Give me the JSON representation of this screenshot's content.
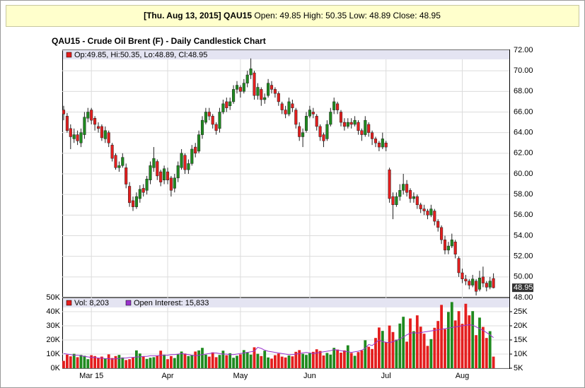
{
  "header": {
    "date": "[Thu. Aug 13, 2015]",
    "symbol": "QAU15",
    "quote": "Open: 49.85 High: 50.35 Low: 48.89 Close: 48.95"
  },
  "chart_data": [
    {
      "type": "candlestick",
      "title": "QAU15 - Crude Oil Brent (F) - Daily Candlestick Chart",
      "legend": "Op:49.85, Hi:50.35, Lo:48.89, Cl:48.95",
      "categories": [
        null,
        null,
        null,
        null,
        null,
        null,
        null,
        null,
        "Mar 15",
        null,
        null,
        null,
        null,
        null,
        null,
        null,
        null,
        null,
        null,
        null,
        null,
        null,
        null,
        null,
        null,
        null,
        null,
        null,
        null,
        null,
        "Apr",
        null,
        null,
        null,
        null,
        null,
        null,
        null,
        null,
        null,
        null,
        null,
        null,
        null,
        null,
        null,
        null,
        null,
        null,
        null,
        null,
        "May",
        null,
        null,
        null,
        null,
        null,
        null,
        null,
        null,
        null,
        null,
        null,
        null,
        null,
        null,
        null,
        null,
        null,
        null,
        null,
        "Jun",
        null,
        null,
        null,
        null,
        null,
        null,
        null,
        null,
        null,
        null,
        null,
        null,
        null,
        null,
        null,
        null,
        null,
        null,
        null,
        null,
        null,
        "Jul",
        null,
        null,
        null,
        null,
        null,
        null,
        null,
        null,
        null,
        null,
        null,
        null,
        null,
        null,
        null,
        null,
        null,
        null,
        null,
        null,
        null,
        "Aug",
        null,
        null,
        null,
        null,
        null,
        null,
        null,
        null,
        null
      ],
      "open": [
        66.2,
        65.6,
        64.4,
        63.4,
        63.8,
        63.0,
        63.8,
        65.4,
        66.2,
        65.4,
        64.6,
        64.6,
        63.4,
        64.0,
        62.8,
        61.8,
        60.6,
        60.8,
        60.6,
        58.8,
        57.4,
        56.8,
        57.6,
        58.6,
        58.4,
        59.4,
        60.6,
        61.2,
        60.2,
        59.4,
        60.2,
        59.6,
        58.6,
        59.6,
        60.6,
        61.8,
        60.4,
        61.0,
        62.6,
        62.2,
        63.8,
        65.0,
        66.0,
        65.6,
        64.8,
        64.4,
        66.0,
        67.0,
        66.6,
        67.0,
        68.2,
        68.4,
        68.0,
        68.8,
        69.6,
        69.8,
        67.6,
        68.2,
        67.2,
        67.6,
        68.6,
        68.2,
        67.8,
        66.8,
        66.2,
        65.8,
        66.8,
        66.2,
        64.6,
        63.6,
        64.2,
        65.6,
        66.0,
        65.6,
        64.6,
        63.8,
        63.4,
        64.8,
        66.2,
        66.8,
        66.0,
        65.0,
        64.6,
        65.0,
        64.8,
        65.0,
        64.2,
        63.8,
        64.8,
        64.0,
        63.4,
        63.0,
        62.6,
        63.0,
        60.4,
        57.8,
        57.0,
        57.8,
        58.4,
        59.0,
        58.4,
        57.6,
        57.8,
        57.0,
        56.6,
        56.4,
        56.0,
        56.4,
        55.4,
        54.8,
        53.6,
        52.6,
        53.0,
        53.4,
        51.8,
        50.4,
        49.8,
        49.6,
        49.2,
        49.6,
        48.8,
        50.0,
        49.4,
        49.0,
        49.85
      ],
      "high": [
        66.6,
        65.9,
        64.8,
        64.4,
        64.2,
        64.4,
        66.0,
        66.4,
        66.4,
        65.6,
        65.0,
        64.8,
        64.6,
        64.2,
        63.0,
        62.0,
        61.2,
        62.0,
        61.0,
        59.2,
        57.8,
        58.2,
        58.9,
        59.0,
        59.8,
        61.2,
        62.6,
        61.4,
        60.4,
        60.8,
        60.6,
        59.8,
        60.0,
        61.2,
        62.4,
        62.0,
        61.4,
        62.8,
        63.0,
        64.2,
        65.6,
        66.4,
        66.4,
        65.8,
        65.0,
        66.4,
        67.2,
        67.4,
        67.4,
        68.6,
        69.0,
        68.6,
        69.2,
        70.0,
        71.2,
        70.0,
        68.8,
        68.4,
        67.8,
        69.2,
        69.0,
        68.4,
        68.0,
        67.0,
        66.6,
        67.4,
        67.2,
        66.4,
        65.0,
        64.4,
        66.0,
        66.6,
        66.4,
        65.8,
        64.8,
        64.0,
        65.2,
        66.4,
        67.4,
        67.0,
        66.2,
        65.4,
        65.4,
        65.4,
        65.6,
        65.2,
        64.4,
        65.6,
        65.0,
        64.2,
        63.6,
        63.2,
        64.0,
        63.2,
        60.6,
        58.2,
        58.2,
        59.0,
        60.0,
        59.4,
        58.6,
        58.2,
        58.0,
        57.2,
        57.0,
        56.6,
        57.0,
        56.6,
        55.6,
        55.0,
        54.0,
        53.4,
        54.2,
        53.6,
        52.0,
        50.8,
        50.2,
        49.8,
        50.2,
        49.8,
        50.6,
        51.0,
        49.6,
        50.0,
        50.35
      ],
      "low": [
        65.2,
        64.0,
        62.4,
        63.0,
        62.8,
        62.6,
        63.4,
        65.0,
        64.8,
        64.2,
        64.0,
        63.2,
        63.0,
        62.6,
        61.2,
        60.4,
        60.2,
        60.6,
        58.6,
        56.8,
        56.4,
        56.6,
        57.2,
        57.8,
        58.0,
        59.0,
        60.2,
        59.4,
        58.8,
        59.0,
        59.0,
        57.8,
        58.2,
        59.2,
        60.4,
        60.0,
        60.0,
        60.8,
        61.6,
        62.0,
        63.4,
        64.8,
        65.2,
        64.4,
        63.8,
        64.0,
        65.8,
        66.0,
        66.2,
        66.8,
        67.8,
        67.4,
        67.8,
        68.4,
        69.2,
        67.2,
        67.2,
        66.6,
        66.8,
        67.4,
        67.8,
        67.4,
        66.6,
        65.8,
        65.4,
        65.6,
        66.0,
        64.4,
        63.2,
        62.6,
        64.0,
        65.4,
        65.4,
        64.2,
        63.2,
        62.6,
        63.2,
        64.6,
        65.8,
        65.8,
        64.6,
        64.2,
        64.4,
        64.4,
        64.6,
        63.8,
        63.2,
        63.6,
        63.6,
        62.8,
        62.6,
        62.2,
        62.4,
        62.2,
        57.2,
        55.6,
        56.8,
        57.4,
        58.0,
        57.8,
        57.2,
        57.2,
        56.6,
        56.2,
        56.0,
        55.6,
        55.8,
        55.0,
        54.4,
        53.2,
        52.2,
        52.2,
        52.8,
        51.8,
        50.0,
        49.4,
        49.2,
        48.8,
        49.0,
        48.2,
        48.6,
        49.0,
        48.6,
        48.8,
        48.89
      ],
      "close": [
        65.8,
        64.2,
        63.6,
        63.8,
        63.2,
        64.0,
        65.5,
        66.0,
        65.2,
        64.8,
        64.4,
        63.5,
        64.2,
        63.0,
        61.5,
        60.6,
        60.8,
        61.6,
        59.0,
        57.2,
        56.8,
        57.8,
        58.5,
        58.2,
        59.5,
        60.8,
        61.5,
        59.8,
        59.2,
        60.5,
        59.4,
        58.4,
        59.6,
        60.8,
        62.0,
        60.4,
        61.0,
        62.4,
        62.0,
        63.8,
        65.2,
        66.0,
        65.6,
        64.8,
        64.2,
        66.0,
        66.8,
        66.4,
        67.0,
        68.2,
        68.6,
        68.0,
        68.8,
        69.6,
        70.2,
        67.6,
        68.4,
        67.2,
        67.4,
        68.8,
        68.2,
        67.8,
        67.0,
        66.2,
        65.8,
        67.0,
        66.4,
        64.8,
        63.6,
        64.0,
        65.6,
        66.2,
        65.8,
        64.6,
        63.6,
        63.2,
        64.8,
        66.0,
        67.0,
        66.2,
        65.0,
        64.6,
        65.0,
        64.8,
        65.2,
        64.2,
        63.8,
        65.2,
        64.0,
        63.4,
        63.0,
        62.6,
        63.4,
        62.6,
        57.6,
        57.0,
        57.8,
        58.4,
        59.0,
        58.2,
        57.6,
        57.8,
        57.0,
        56.6,
        56.4,
        56.0,
        56.6,
        55.4,
        54.8,
        53.6,
        52.6,
        53.0,
        53.6,
        52.2,
        50.4,
        49.8,
        49.6,
        49.2,
        49.8,
        48.6,
        49.9,
        49.4,
        49.0,
        49.6,
        48.95
      ],
      "last_price": 48.95,
      "up_color": "#1f8a1f",
      "down_color": "#e41e1e",
      "ylim": [
        48,
        72
      ],
      "yticks": [
        {
          "value": 48,
          "label": "48.00"
        },
        {
          "value": 50,
          "label": "50.00"
        },
        {
          "value": 52,
          "label": "52.00"
        },
        {
          "value": 54,
          "label": "54.00"
        },
        {
          "value": 56,
          "label": "56.00"
        },
        {
          "value": 58,
          "label": "58.00"
        },
        {
          "value": 60,
          "label": "60.00"
        },
        {
          "value": 62,
          "label": "62.00"
        },
        {
          "value": 64,
          "label": "64.00"
        },
        {
          "value": 66,
          "label": "66.00"
        },
        {
          "value": 68,
          "label": "68.00"
        },
        {
          "value": 70,
          "label": "70.00"
        },
        {
          "value": 72,
          "label": "72.00"
        }
      ],
      "grid": true
    },
    {
      "type": "bar",
      "series": [
        {
          "name": "Vol: 8,203",
          "color": "#e41e1e",
          "values": [
            5200,
            9600,
            8400,
            10200,
            7800,
            9400,
            8800,
            6400,
            9200,
            8600,
            7400,
            8200,
            6800,
            9800,
            7200,
            8600,
            9400,
            7600,
            5800,
            6400,
            7800,
            12600,
            10400,
            8200,
            6600,
            7400,
            7800,
            8800,
            12400,
            9600,
            6400,
            8600,
            7200,
            9800,
            11800,
            10400,
            8600,
            9400,
            11800,
            12600,
            14400,
            9600,
            8200,
            11200,
            7800,
            9400,
            12400,
            9200,
            10600,
            7400,
            8800,
            9800,
            12800,
            11400,
            9600,
            14800,
            10200,
            8600,
            12400,
            7600,
            6800,
            9200,
            10400,
            8200,
            7600,
            9000,
            8400,
            11600,
            12800,
            10200,
            9400,
            10600,
            11600,
            13400,
            12200,
            9000,
            10800,
            9600,
            14400,
            13200,
            11000,
            12600,
            16200,
            10800,
            8800,
            11400,
            12600,
            19800,
            15200,
            13600,
            21400,
            28800,
            26400,
            18400,
            30200,
            25600,
            20200,
            31600,
            36400,
            18800,
            35200,
            26200,
            37400,
            29400,
            24400,
            15800,
            20600,
            28600,
            33400,
            44800,
            27600,
            39800,
            46800,
            33800,
            40400,
            31400,
            45600,
            37400,
            40400,
            23400,
            35800,
            29200,
            21400,
            26200,
            8203
          ]
        },
        {
          "name": "Open Interest: 15,833",
          "color": "#9933cc",
          "axis": "y2",
          "values": [
            10200,
            10000,
            9800,
            9600,
            9600,
            9400,
            9200,
            9000,
            8800,
            8800,
            8600,
            8600,
            8400,
            8400,
            8200,
            8400,
            8400,
            8600,
            8600,
            8800,
            8800,
            9000,
            9000,
            9200,
            9200,
            9400,
            9400,
            9400,
            9600,
            9600,
            9600,
            9800,
            9800,
            10000,
            10200,
            10000,
            9800,
            9600,
            9400,
            9600,
            9800,
            10000,
            10200,
            10400,
            10400,
            10200,
            10000,
            10000,
            9800,
            9800,
            10000,
            10200,
            10400,
            10600,
            10800,
            11000,
            12400,
            12000,
            11400,
            11000,
            10800,
            10600,
            10400,
            10200,
            10000,
            9800,
            9800,
            10000,
            10200,
            10400,
            10600,
            10400,
            10200,
            10400,
            10600,
            10800,
            11000,
            11200,
            11600,
            11400,
            11200,
            11000,
            10800,
            10600,
            10800,
            11000,
            11400,
            12000,
            13400,
            13000,
            14000,
            15000,
            14400,
            14200,
            14000,
            14400,
            14800,
            15400,
            16000,
            16800,
            17400,
            17600,
            17400,
            17600,
            17800,
            18000,
            18200,
            18400,
            18600,
            18800,
            19000,
            19200,
            19400,
            19600,
            19800,
            20000,
            20200,
            20400,
            20200,
            19600,
            19000,
            18400,
            17600,
            16800,
            15833
          ]
        }
      ],
      "ylim": [
        0,
        50000
      ],
      "yticks": [
        {
          "value": 0,
          "label": "0K"
        },
        {
          "value": 10000,
          "label": "10K"
        },
        {
          "value": 20000,
          "label": "20K"
        },
        {
          "value": 30000,
          "label": "30K"
        },
        {
          "value": 40000,
          "label": "40K"
        },
        {
          "value": 50000,
          "label": "50K"
        }
      ],
      "y2lim": [
        5000,
        30000
      ],
      "y2ticks": [
        {
          "value": 5000,
          "label": "5K"
        },
        {
          "value": 10000,
          "label": "10K"
        },
        {
          "value": 15000,
          "label": "15K"
        },
        {
          "value": 20000,
          "label": "20K"
        },
        {
          "value": 25000,
          "label": "25K"
        }
      ],
      "grid": true
    }
  ]
}
